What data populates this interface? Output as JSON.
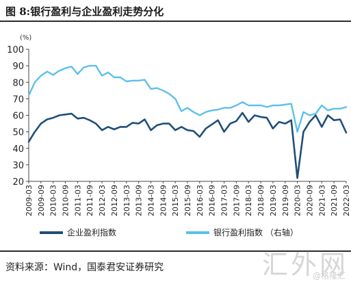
{
  "title": "图 8:银行盈利与企业盈利走势分化",
  "unit": "(%)",
  "source": "资料来源：Wind，国泰君安证券研究",
  "watermark": {
    "main": "汇外网",
    "sub": "@格隆汇"
  },
  "chart_data": {
    "type": "line",
    "title": "",
    "xlabel": "",
    "ylabel": "(%)",
    "ylim": [
      20,
      100
    ],
    "yticks": [
      20,
      30,
      40,
      50,
      60,
      70,
      80,
      90,
      100
    ],
    "grid": false,
    "legend_position": "bottom",
    "x_tick_labels": [
      "2009-03",
      "2009-09",
      "2010-03",
      "2010-09",
      "2011-03",
      "2011-09",
      "2012-03",
      "2012-09",
      "2013-03",
      "2013-09",
      "2014-03",
      "2014-09",
      "2015-03",
      "2015-09",
      "2016-03",
      "2016-09",
      "2017-03",
      "2017-09",
      "2018-03",
      "2018-09",
      "2019-03",
      "2019-09",
      "2020-03",
      "2020-09",
      "2021-03",
      "2021-09",
      "2022-03"
    ],
    "x": [
      "2009-03",
      "2009-06",
      "2009-09",
      "2009-12",
      "2010-03",
      "2010-06",
      "2010-09",
      "2010-12",
      "2011-03",
      "2011-06",
      "2011-09",
      "2011-12",
      "2012-03",
      "2012-06",
      "2012-09",
      "2012-12",
      "2013-03",
      "2013-06",
      "2013-09",
      "2013-12",
      "2014-03",
      "2014-06",
      "2014-09",
      "2014-12",
      "2015-03",
      "2015-06",
      "2015-09",
      "2015-12",
      "2016-03",
      "2016-06",
      "2016-09",
      "2016-12",
      "2017-03",
      "2017-06",
      "2017-09",
      "2017-12",
      "2018-03",
      "2018-06",
      "2018-09",
      "2018-12",
      "2019-03",
      "2019-06",
      "2019-09",
      "2019-12",
      "2020-03",
      "2020-06",
      "2020-09",
      "2020-12",
      "2021-03",
      "2021-06",
      "2021-09",
      "2021-12",
      "2022-03"
    ],
    "series": [
      {
        "name": "企业盈利指数",
        "color": "#1f4e79",
        "axis": "left",
        "values": [
          44,
          50,
          55,
          57.5,
          58.5,
          60,
          60.5,
          61,
          58,
          58.5,
          57,
          55,
          51,
          53,
          51.5,
          53,
          53,
          55.5,
          55,
          57.5,
          51,
          54,
          55,
          55,
          51,
          53,
          51,
          50.5,
          47,
          52,
          54.5,
          57,
          50,
          55,
          56.5,
          61.5,
          56,
          60,
          59,
          58.5,
          52,
          56,
          55,
          57,
          22,
          50,
          56,
          60,
          53,
          60,
          57,
          57.5,
          49.5
        ]
      },
      {
        "name": "银行盈利指数（右轴）",
        "color": "#5bc0eb",
        "axis": "right",
        "values": [
          72,
          80,
          84,
          86.5,
          84.5,
          87,
          88.5,
          89.5,
          85,
          89,
          90,
          90,
          84,
          86,
          83,
          83,
          80.5,
          81,
          81,
          81.5,
          76,
          76.5,
          75,
          73,
          70,
          62.5,
          64.5,
          62,
          60,
          62,
          63,
          63.5,
          64.5,
          64.5,
          66,
          68,
          66,
          66,
          66,
          65,
          66,
          66,
          66.5,
          67,
          50,
          62,
          60,
          61,
          66,
          63,
          64,
          64,
          65
        ]
      }
    ]
  },
  "legend": [
    {
      "label": "企业盈利指数",
      "color": "#1f4e79"
    },
    {
      "label": "银行盈利指数 （右轴）",
      "color": "#5bc0eb"
    }
  ]
}
